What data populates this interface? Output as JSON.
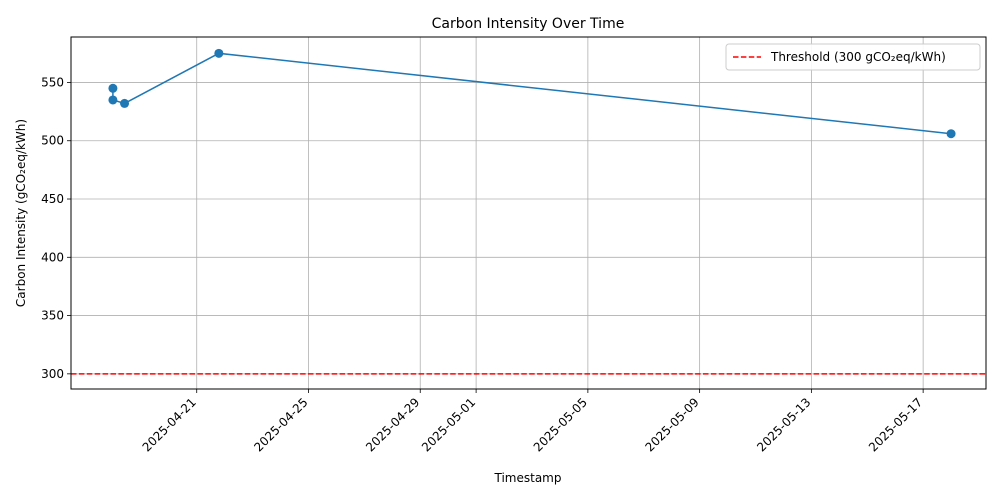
{
  "chart_data": {
    "type": "line",
    "title": "Carbon Intensity Over Time",
    "xlabel": "Timestamp",
    "ylabel": "Carbon Intensity (gCO₂eq/kWh)",
    "x_type": "date",
    "xlim": [
      "2025-04-16T12:00",
      "2025-05-19T06:00"
    ],
    "ylim": [
      287,
      589
    ],
    "x_ticks": [
      "2025-04-21",
      "2025-04-25",
      "2025-04-29",
      "2025-05-01",
      "2025-05-05",
      "2025-05-09",
      "2025-05-13",
      "2025-05-17"
    ],
    "y_ticks": [
      300,
      350,
      400,
      450,
      500,
      550
    ],
    "grid": true,
    "series": [
      {
        "color": "#1f77b4",
        "marker": "circle",
        "points": [
          {
            "x": "2025-04-18T00:00",
            "y": 545
          },
          {
            "x": "2025-04-18T00:00",
            "y": 535
          },
          {
            "x": "2025-04-18T10:00",
            "y": 532
          },
          {
            "x": "2025-04-21T19:00",
            "y": 575
          },
          {
            "x": "2025-05-18T00:00",
            "y": 506
          }
        ]
      }
    ],
    "reference_lines": [
      {
        "name": "Threshold (300 gCO₂eq/kWh)",
        "y": 300,
        "color": "#ff0000",
        "style": "dashed"
      }
    ],
    "legend": {
      "position": "top-right",
      "entries": [
        "Threshold (300 gCO₂eq/kWh)"
      ]
    }
  }
}
